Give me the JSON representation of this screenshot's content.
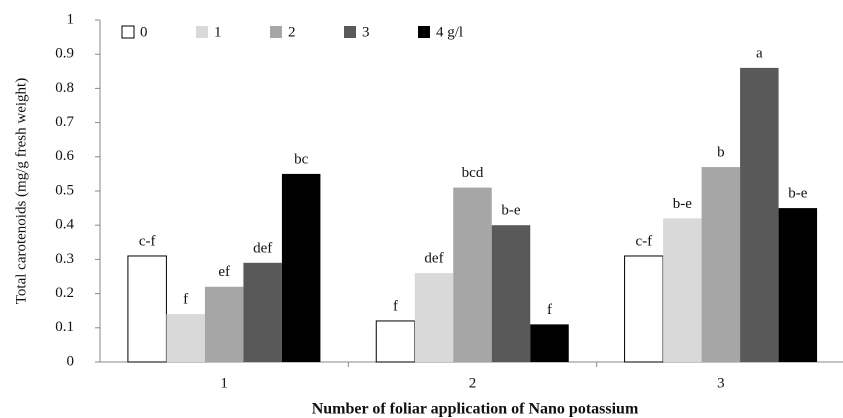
{
  "chart_data": {
    "type": "bar",
    "xlabel": "Number of foliar application of Nano potassium",
    "ylabel": "Total carotenoids (mg/g fresh weight)",
    "categories": [
      "1",
      "2",
      "3"
    ],
    "series": [
      {
        "name": "0",
        "color": "#ffffff",
        "values": [
          0.31,
          0.12,
          0.31
        ],
        "letters": [
          "c-f",
          "f",
          "c-f"
        ]
      },
      {
        "name": "1",
        "color": "#d9d9d9",
        "values": [
          0.14,
          0.26,
          0.42
        ],
        "letters": [
          "f",
          "def",
          "b-e"
        ]
      },
      {
        "name": "2",
        "color": "#a6a6a6",
        "values": [
          0.22,
          0.51,
          0.57
        ],
        "letters": [
          "ef",
          "bcd",
          "b"
        ]
      },
      {
        "name": "3",
        "color": "#595959",
        "values": [
          0.29,
          0.4,
          0.86
        ],
        "letters": [
          "def",
          "b-e",
          "a"
        ]
      },
      {
        "name": "4 g/l",
        "color": "#000000",
        "values": [
          0.55,
          0.11,
          0.45
        ],
        "letters": [
          "bc",
          "f",
          "b-e"
        ]
      }
    ],
    "ylim": [
      0,
      1
    ],
    "yticks": [
      0,
      0.1,
      0.2,
      0.3,
      0.4,
      0.5,
      0.6,
      0.7,
      0.8,
      0.9,
      1
    ]
  }
}
